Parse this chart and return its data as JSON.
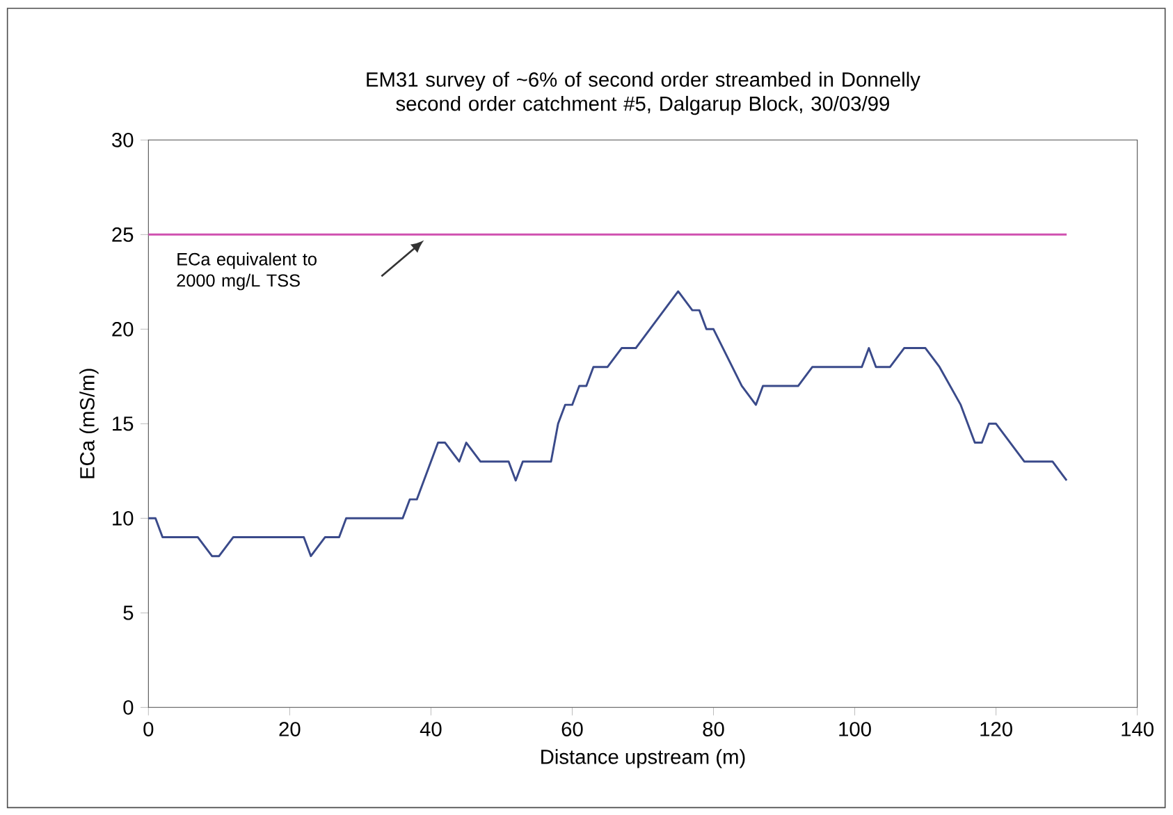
{
  "chart_data": {
    "type": "line",
    "title": "EM31 survey of ~6% of second order streambed in Donnelly second order catchment #5, Dalgarup Block, 30/03/99",
    "xlabel": "Distance upstream (m)",
    "ylabel": "ECa (mS/m)",
    "x": [
      0,
      1,
      2,
      7,
      9,
      10,
      12,
      22,
      23,
      25,
      26,
      27,
      28,
      36,
      37,
      38,
      39,
      41,
      42,
      44,
      45,
      47,
      51,
      52,
      53,
      56,
      57,
      58,
      59,
      60,
      61,
      62,
      63,
      65,
      67,
      69,
      73,
      75,
      77,
      78,
      79,
      80,
      84,
      86,
      87,
      92,
      94,
      101,
      102,
      103,
      105,
      107,
      110,
      112,
      115,
      116,
      117,
      118,
      119,
      120,
      124,
      128,
      129,
      130
    ],
    "series": [
      {
        "color": "#3a4a8a",
        "values": [
          10,
          10,
          9,
          9,
          8,
          8,
          9,
          9,
          8,
          9,
          9,
          9,
          10,
          10,
          11,
          11,
          12,
          14,
          14,
          13,
          14,
          13,
          13,
          12,
          13,
          13,
          13,
          15,
          16,
          16,
          17,
          17,
          18,
          18,
          19,
          19,
          21,
          22,
          21,
          21,
          20,
          20,
          17,
          16,
          17,
          17,
          18,
          18,
          19,
          18,
          18,
          19,
          19,
          18,
          16,
          15,
          14,
          14,
          15,
          15,
          13,
          13,
          12.5,
          12
        ]
      }
    ],
    "xlim": [
      0,
      140
    ],
    "xticks": [
      0,
      20,
      40,
      60,
      80,
      100,
      120,
      140
    ],
    "ylim": [
      0,
      30
    ],
    "yticks": [
      0,
      5,
      10,
      15,
      20,
      25,
      30
    ],
    "ref_lines": [
      {
        "axis": "y",
        "value": 25,
        "label": "ECa equivalent to 2000 mg/L TSS",
        "color": "#d050b0"
      }
    ],
    "grid": false,
    "marker": "none",
    "line_style": "solid"
  }
}
